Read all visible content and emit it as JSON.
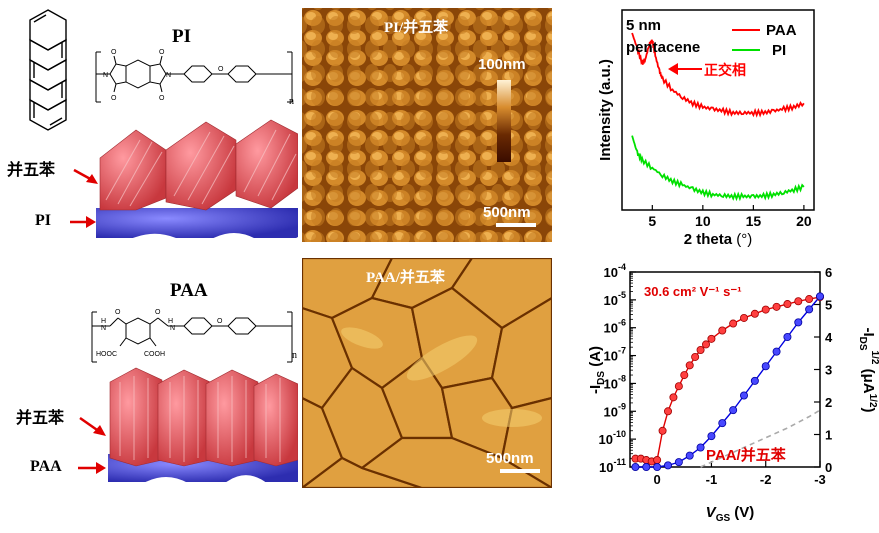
{
  "pi_panel": {
    "title": "PI",
    "label_pentacene": "并五苯",
    "label_pi": "PI",
    "formula_n": "n"
  },
  "paa_panel": {
    "title": "PAA",
    "label_pentacene": "并五苯",
    "label_paa": "PAA",
    "formula_n": "n",
    "formula_cooh_left": "HOOC",
    "formula_cooh_right": "COOH"
  },
  "afm_pi": {
    "title": "PI/并五苯",
    "colorbar_label": "100nm",
    "scale_bar": "500nm"
  },
  "afm_paa": {
    "title": "PAA/并五苯",
    "scale_bar": "500nm"
  },
  "chart_data": [
    {
      "type": "line",
      "title": "",
      "annotation_thickness": "5 nm",
      "annotation_material": "pentacene",
      "annotation_phase": "正交相",
      "xlabel": "2 theta",
      "xlabel_unit": "(°)",
      "ylabel": "Intensity (a.u.)",
      "xlim": [
        2,
        21
      ],
      "xticks": [
        "5",
        "10",
        "15",
        "20"
      ],
      "legend": [
        "PAA",
        "PI"
      ],
      "colors": {
        "PAA": "#ff0000",
        "PI": "#00e000"
      },
      "series": [
        {
          "name": "PAA",
          "x": [
            3,
            3.5,
            4,
            4.3,
            4.7,
            5.0,
            5.3,
            5.7,
            6,
            7,
            8,
            9,
            10,
            11,
            12,
            13,
            14,
            15,
            16,
            17,
            18,
            19,
            20
          ],
          "y": [
            0.9,
            0.82,
            0.74,
            0.76,
            0.84,
            0.86,
            0.78,
            0.7,
            0.66,
            0.6,
            0.56,
            0.53,
            0.51,
            0.5,
            0.49,
            0.48,
            0.48,
            0.48,
            0.48,
            0.49,
            0.5,
            0.51,
            0.53
          ]
        },
        {
          "name": "PI",
          "x": [
            3,
            3.5,
            4,
            5,
            6,
            7,
            8,
            9,
            10,
            11,
            12,
            13,
            14,
            15,
            16,
            17,
            18,
            19,
            20
          ],
          "y": [
            0.36,
            0.27,
            0.23,
            0.19,
            0.15,
            0.12,
            0.1,
            0.08,
            0.06,
            0.05,
            0.045,
            0.04,
            0.04,
            0.04,
            0.042,
            0.05,
            0.06,
            0.075,
            0.09
          ]
        }
      ]
    },
    {
      "type": "line",
      "title": "",
      "annotation_mobility": "30.6 cm² V⁻¹ s⁻¹",
      "annotation_device": "PAA/并五苯",
      "xlabel_main": "V",
      "xlabel_sub": "GS",
      "xlabel_unit": " (V)",
      "ylabel_left_main": "-I",
      "ylabel_left_sub": "DS",
      "ylabel_left_unit": " (A)",
      "ylabel_right_main": "-I",
      "ylabel_right_sub": "DS",
      "ylabel_right_sup": "1/2",
      "ylabel_right_unit": " (μA",
      "ylabel_right_unit_sup": "1/2",
      "xlim": [
        0.5,
        -3
      ],
      "xticks": [
        "0",
        "-1",
        "-2",
        "-3"
      ],
      "ylim_left_log10": [
        -11,
        -4
      ],
      "ylim_right": [
        0,
        6
      ],
      "yticks_right": [
        "0",
        "1",
        "2",
        "3",
        "4",
        "5",
        "6"
      ],
      "series": [
        {
          "name": "-IDS (A)",
          "axis": "left",
          "color": "#e00000",
          "x": [
            0.4,
            0.3,
            0.2,
            0.1,
            0.0,
            -0.1,
            -0.2,
            -0.3,
            -0.4,
            -0.5,
            -0.6,
            -0.7,
            -0.8,
            -0.9,
            -1.0,
            -1.2,
            -1.4,
            -1.6,
            -1.8,
            -2.0,
            -2.2,
            -2.4,
            -2.6,
            -2.8,
            -3.0
          ],
          "log10y": [
            -10.7,
            -10.7,
            -10.75,
            -10.8,
            -10.75,
            -9.7,
            -9.0,
            -8.5,
            -8.1,
            -7.7,
            -7.35,
            -7.05,
            -6.8,
            -6.6,
            -6.4,
            -6.1,
            -5.85,
            -5.65,
            -5.5,
            -5.35,
            -5.25,
            -5.15,
            -5.05,
            -4.97,
            -4.9
          ]
        },
        {
          "name": "-IDS^1/2 (μA^1/2)",
          "axis": "right",
          "color": "#0000e0",
          "x": [
            0.4,
            0.2,
            0.0,
            -0.2,
            -0.4,
            -0.6,
            -0.8,
            -1.0,
            -1.2,
            -1.4,
            -1.6,
            -1.8,
            -2.0,
            -2.2,
            -2.4,
            -2.6,
            -2.8,
            -3.0
          ],
          "y": [
            0.0,
            0.0,
            0.0,
            0.05,
            0.15,
            0.35,
            0.6,
            0.95,
            1.35,
            1.75,
            2.2,
            2.65,
            3.1,
            3.55,
            4.0,
            4.45,
            4.85,
            5.25
          ]
        },
        {
          "name": "fit",
          "axis": "right",
          "color": "#aaaaaa",
          "x": [
            -0.8,
            -1.2,
            -1.6,
            -2.0,
            -2.4,
            -2.8,
            -3.0
          ],
          "y": [
            0.0,
            0.3,
            0.6,
            0.9,
            1.2,
            1.55,
            1.75
          ]
        }
      ]
    }
  ]
}
